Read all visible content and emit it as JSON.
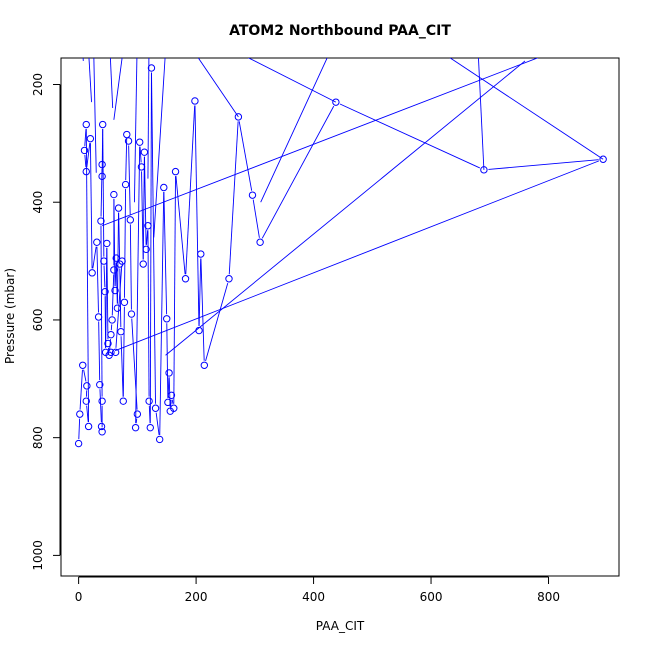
{
  "chart_data": {
    "type": "scatter",
    "title": "ATOM2 Northbound PAA_CIT",
    "xlabel": "PAA_CIT",
    "ylabel": "Pressure (mbar)",
    "xlim": [
      -30,
      920
    ],
    "ylim": [
      1035,
      155
    ],
    "y_axis_reversed": true,
    "x_ticks": [
      0,
      200,
      400,
      600,
      800
    ],
    "y_ticks": [
      200,
      400,
      600,
      800,
      1000
    ],
    "series_color": "#0000ff",
    "grid": false,
    "legend": "none",
    "series": [
      {
        "style": "line-and-open-circles",
        "points": [
          [
            0,
            810
          ],
          [
            2,
            760
          ],
          [
            7,
            677
          ],
          [
            14,
            712
          ],
          [
            13,
            738
          ],
          [
            17,
            781
          ],
          [
            13,
            268
          ],
          [
            10,
            312
          ],
          [
            13,
            348
          ],
          [
            20,
            292
          ],
          [
            23,
            520
          ],
          [
            31,
            468
          ],
          [
            34,
            595
          ],
          [
            36,
            710
          ],
          [
            39,
            781
          ],
          [
            40,
            790
          ],
          [
            40,
            738
          ],
          [
            38,
            432
          ],
          [
            40,
            336
          ],
          [
            40,
            356
          ],
          [
            41,
            268
          ],
          [
            43,
            500
          ],
          [
            45,
            552
          ],
          [
            46,
            655
          ],
          [
            48,
            470
          ],
          [
            50,
            640
          ],
          [
            52,
            660
          ],
          [
            55,
            625
          ],
          [
            57,
            600
          ],
          [
            60,
            515
          ],
          [
            60,
            387
          ],
          [
            62,
            550
          ],
          [
            64,
            495
          ],
          [
            66,
            580
          ],
          [
            68,
            410
          ],
          [
            70,
            505
          ],
          [
            72,
            620
          ],
          [
            76,
            738
          ],
          [
            78,
            570
          ],
          [
            80,
            370
          ],
          [
            82,
            285
          ],
          [
            85,
            296
          ],
          [
            88,
            430
          ],
          [
            90,
            590
          ],
          [
            100,
            760
          ],
          [
            97,
            783
          ],
          [
            104,
            298
          ],
          [
            107,
            340
          ],
          [
            110,
            505
          ],
          [
            112,
            315
          ],
          [
            115,
            480
          ],
          [
            118,
            440
          ],
          [
            120,
            738
          ],
          [
            122,
            783
          ],
          [
            124,
            172
          ],
          [
            131,
            750
          ],
          [
            138,
            803
          ],
          [
            145,
            375
          ],
          [
            150,
            598
          ],
          [
            152,
            740
          ],
          [
            154,
            690
          ],
          [
            156,
            755
          ],
          [
            158,
            728
          ],
          [
            162,
            750
          ],
          [
            165,
            348
          ],
          [
            182,
            530
          ],
          [
            198,
            228
          ],
          [
            205,
            618
          ],
          [
            208,
            488
          ],
          [
            214,
            677
          ],
          [
            256,
            530
          ],
          [
            272,
            255
          ],
          [
            296,
            388
          ],
          [
            309,
            468
          ],
          [
            438,
            230
          ],
          [
            690,
            345
          ],
          [
            893,
            327
          ],
          [
            55,
            655
          ],
          [
            63,
            655
          ],
          [
            74,
            500
          ]
        ],
        "offscale_segments": [
          [
            [
              4,
              110
            ],
            [
              8,
              160
            ]
          ],
          [
            [
              15,
              110
            ],
            [
              22,
              230
            ]
          ],
          [
            [
              25,
              110
            ],
            [
              30,
              350
            ]
          ],
          [
            [
              52,
              110
            ],
            [
              58,
              240
            ]
          ],
          [
            [
              80,
              110
            ],
            [
              60,
              260
            ]
          ],
          [
            [
              100,
              110
            ],
            [
              95,
              400
            ]
          ],
          [
            [
              120,
              110
            ],
            [
              118,
              360
            ]
          ],
          [
            [
              150,
              110
            ],
            [
              128,
              460
            ]
          ],
          [
            [
              180,
              120
            ],
            [
              272,
              255
            ]
          ],
          [
            [
              260,
              140
            ],
            [
              438,
              230
            ]
          ],
          [
            [
              430,
              140
            ],
            [
              310,
              400
            ]
          ],
          [
            [
              680,
              140
            ],
            [
              690,
              345
            ]
          ],
          [
            [
              610,
              140
            ],
            [
              893,
              327
            ]
          ],
          [
            [
              820,
              140
            ],
            [
              40,
              440
            ]
          ],
          [
            [
              760,
              160
            ],
            [
              148,
              660
            ]
          ]
        ]
      }
    ]
  }
}
